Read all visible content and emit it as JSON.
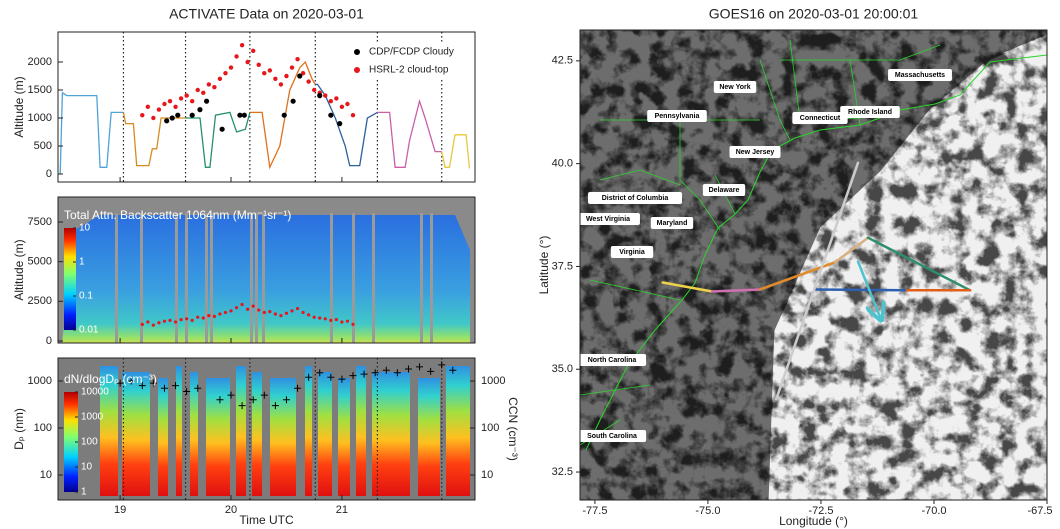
{
  "chart_data": [
    {
      "type": "line",
      "title": "ACTIVATE Data on 2020-03-01",
      "ylabel": "Altitude (m)",
      "xlim": [
        18.44,
        22.2
      ],
      "ylim": [
        -143,
        2536
      ],
      "yticks": [
        0,
        500,
        1000,
        1500,
        2000
      ],
      "vlines": [
        19.03,
        19.59,
        20.17,
        20.76,
        21.32,
        21.9
      ],
      "series": [
        {
          "color": "#4fa3d9",
          "x": [
            18.46,
            18.48,
            18.52,
            18.79,
            18.82,
            18.88,
            18.92,
            19.03
          ],
          "values": [
            0,
            1450,
            1400,
            1400,
            120,
            120,
            1100,
            1100
          ]
        },
        {
          "color": "#d98a1f",
          "x": [
            19.03,
            19.05,
            19.12,
            19.15,
            19.26,
            19.29,
            19.33,
            19.37,
            19.59
          ],
          "values": [
            1100,
            900,
            900,
            150,
            150,
            450,
            450,
            1000,
            1000
          ]
        },
        {
          "color": "#23906e",
          "x": [
            19.59,
            19.72,
            19.77,
            19.81,
            19.86,
            19.99,
            20.05,
            20.13,
            20.17
          ],
          "values": [
            1000,
            1000,
            120,
            120,
            1050,
            1100,
            750,
            800,
            1100
          ]
        },
        {
          "color": "#e0701a",
          "x": [
            20.17,
            20.28,
            20.35,
            20.44,
            20.53,
            20.62,
            20.67,
            20.73,
            20.76
          ],
          "values": [
            1100,
            1100,
            120,
            500,
            1500,
            1900,
            2000,
            1700,
            1600
          ]
        },
        {
          "color": "#2c5f9e",
          "x": [
            20.76,
            20.78,
            20.85,
            20.94,
            21.03,
            21.07,
            21.16,
            21.23,
            21.32
          ],
          "values": [
            1600,
            1600,
            1400,
            1000,
            500,
            150,
            150,
            1000,
            1100
          ]
        },
        {
          "color": "#c860a8",
          "x": [
            21.32,
            21.43,
            21.48,
            21.57,
            21.61,
            21.7,
            21.75,
            21.84,
            21.9
          ],
          "values": [
            1100,
            1100,
            120,
            120,
            600,
            1300,
            1000,
            400,
            400
          ]
        },
        {
          "color": "#e8c93a",
          "x": [
            21.9,
            21.93,
            21.97,
            22.02,
            22.12,
            22.15
          ],
          "values": [
            400,
            120,
            120,
            700,
            700,
            100
          ]
        }
      ],
      "scatter": [
        {
          "name": "CDP/FCDP Cloudy",
          "color": "#000000",
          "x": [
            19.42,
            19.47,
            19.52,
            19.65,
            19.72,
            19.78,
            19.92,
            20.08,
            20.12,
            20.48,
            20.56,
            20.62,
            20.8,
            20.9,
            20.98
          ],
          "values": [
            950,
            1000,
            1050,
            1050,
            1150,
            1300,
            800,
            1050,
            1050,
            1050,
            1300,
            1750,
            1400,
            1050,
            900
          ]
        },
        {
          "name": "HSRL-2 cloud-top",
          "color": "#e8161b",
          "x": [
            19.2,
            19.25,
            19.3,
            19.35,
            19.4,
            19.45,
            19.5,
            19.55,
            19.6,
            19.65,
            19.7,
            19.75,
            19.8,
            19.85,
            19.9,
            19.95,
            20.0,
            20.05,
            20.1,
            20.15,
            20.2,
            20.25,
            20.3,
            20.35,
            20.4,
            20.45,
            20.5,
            20.55,
            20.6,
            20.65,
            20.7,
            20.75,
            20.8,
            20.85,
            20.9,
            20.95,
            21.0,
            21.05,
            21.1
          ],
          "values": [
            1050,
            1200,
            1000,
            1150,
            1250,
            1300,
            1200,
            1350,
            1400,
            1300,
            1500,
            1450,
            1600,
            1550,
            1700,
            1800,
            1900,
            2100,
            2300,
            2000,
            2200,
            1950,
            1800,
            1850,
            1700,
            1600,
            1750,
            1900,
            2050,
            1800,
            1650,
            1500,
            1450,
            1400,
            1300,
            1350,
            1200,
            1250,
            1050
          ]
        }
      ],
      "legend": "upper right"
    },
    {
      "type": "curtain",
      "ylabel": "Altitude (m)",
      "xlim": [
        18.44,
        22.2
      ],
      "ylim": [
        -126,
        9076
      ],
      "yticks": [
        0,
        2500,
        5000,
        7500
      ],
      "colorbar": {
        "label": "Total Attn. Backscatter 1064nm (Mm⁻¹sr⁻¹)",
        "lim": [
          0.01,
          10
        ],
        "ticks": [
          0.01,
          0.1,
          1,
          10
        ],
        "log": true
      }
    },
    {
      "type": "size_distribution",
      "xlabel": "Time UTC",
      "ylabel": "Dₚ (nm)",
      "y2label": "CCN (cm⁻³)",
      "xlim": [
        18.44,
        22.2
      ],
      "xticks": [
        19,
        20,
        21
      ],
      "ylim": [
        2.94,
        3090
      ],
      "yticks": [
        10,
        100,
        1000
      ],
      "log_y": true,
      "y2lim": [
        2.94,
        3090
      ],
      "y2ticks": [
        10,
        100,
        1000
      ],
      "colorbar": {
        "label": "dN/dlogDₚ (cm⁻³)",
        "lim": [
          1,
          10000
        ],
        "ticks": [
          1,
          10,
          100,
          1000,
          10000
        ],
        "log": true
      },
      "series": [
        {
          "axis": "y2",
          "color": "#000000",
          "x": [
            19.0,
            19.1,
            19.2,
            19.3,
            19.4,
            19.5,
            19.6,
            19.7,
            19.9,
            20.0,
            20.1,
            20.2,
            20.3,
            20.4,
            20.5,
            20.6,
            20.7,
            20.8,
            20.9,
            21.0,
            21.1,
            21.2,
            21.3,
            21.4,
            21.5,
            21.6,
            21.7,
            21.8,
            21.9,
            22.0
          ],
          "values": [
            900,
            1000,
            800,
            900,
            700,
            800,
            600,
            700,
            400,
            500,
            300,
            400,
            500,
            300,
            400,
            700,
            1200,
            1500,
            1200,
            1100,
            1300,
            1400,
            1500,
            1700,
            1500,
            1800,
            2000,
            1600,
            2200,
            1700
          ]
        }
      ]
    },
    {
      "type": "map",
      "title": "GOES16 on 2020-03-01 20:00:01",
      "xlabel": "Longitude (°)",
      "ylabel": "Latitude (°)",
      "xlim": [
        -77.83,
        -67.5
      ],
      "ylim": [
        31.82,
        43.25
      ],
      "xticks": [
        -77.5,
        {
          "value": -75,
          "label": "-75.0"
        },
        -72.5,
        {
          "value": -70,
          "label": "-70.0"
        },
        -67.5
      ],
      "yticks": [
        32.5,
        {
          "value": 35,
          "label": "35.0"
        },
        37.5,
        {
          "value": 40,
          "label": "40.0"
        },
        42.5
      ],
      "tracks": [
        {
          "color": "#f0d24a",
          "lon": [
            -76.0,
            -74.91
          ],
          "lat": [
            37.11,
            36.89
          ]
        },
        {
          "color": "#d070b0",
          "lon": [
            -74.91,
            -73.85
          ],
          "lat": [
            36.89,
            36.94
          ]
        },
        {
          "color": "#e08a2a",
          "lon": [
            -73.85,
            -72.19
          ],
          "lat": [
            36.94,
            37.6
          ]
        },
        {
          "color": "#d8b080",
          "lon": [
            -72.19,
            -71.46
          ],
          "lat": [
            37.6,
            38.2
          ]
        },
        {
          "color": "#2f8f6a",
          "lon": [
            -71.46,
            -69.2
          ],
          "lat": [
            38.2,
            36.92
          ]
        },
        {
          "color": "#e0601a",
          "lon": [
            -69.2,
            -70.64
          ],
          "lat": [
            36.92,
            36.92
          ]
        },
        {
          "color": "#2e60b0",
          "lon": [
            -70.64,
            -72.63
          ],
          "lat": [
            36.92,
            36.94
          ]
        },
        {
          "color": "#4cc3cf",
          "lon": [
            -71.68,
            -71.19
          ],
          "lat": [
            37.62,
            36.26
          ],
          "arrow": true
        },
        {
          "color": "#cccccc",
          "lon": [
            -73.49,
            -71.68
          ],
          "lat": [
            34.27,
            40.02
          ]
        }
      ],
      "labels": [
        "New York",
        "Pennsylvania",
        "Connecticut",
        "Rhode Island",
        "Massachusetts",
        "New Jersey",
        "Delaware",
        "District of Columbia",
        "Maryland",
        "West Virginia",
        "Virginia",
        "North Carolina",
        "South Carolina"
      ]
    }
  ]
}
